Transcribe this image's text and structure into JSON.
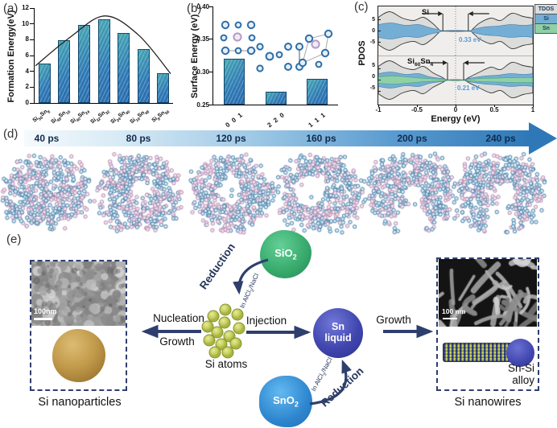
{
  "figure_labels": {
    "a": "(a)",
    "b": "(b)",
    "c": "(c)",
    "d": "(d)",
    "e": "(e)"
  },
  "chart_data": [
    {
      "panel": "a",
      "type": "bar",
      "title": "",
      "ylabel": "Formation Energy(eV)",
      "ylim": [
        0,
        12
      ],
      "yticks": [
        "0",
        "2",
        "4",
        "6",
        "8",
        "10",
        "12"
      ],
      "categories": [
        "Si56Sn8",
        "Si48Sn16",
        "Si40Sn24",
        "Si32Sn32",
        "Si24Sn40",
        "Si16Sn48",
        "Si8Sn56"
      ],
      "values": [
        5.0,
        7.9,
        9.9,
        10.6,
        8.9,
        6.8,
        3.8
      ],
      "envelope_curve": [
        4.7,
        8.3,
        11.0,
        8.6,
        3.7
      ],
      "bar_color": "#2f79b5"
    },
    {
      "panel": "b",
      "type": "bar",
      "title": "",
      "ylabel": "Surface Energy (eV)",
      "ylim": [
        0.25,
        0.4
      ],
      "yticks": [
        "0.25",
        "0.30",
        "0.35",
        "0.40"
      ],
      "categories": [
        "0 0 1",
        "2 2 0",
        "1 1 1"
      ],
      "values": [
        0.32,
        0.27,
        0.29
      ],
      "bar_color": "#2f79b5"
    },
    {
      "panel": "c",
      "type": "area",
      "title": "",
      "xlabel": "Energy (eV)",
      "ylabel": "PDOS",
      "xlim": [
        -1,
        1
      ],
      "xticks": [
        "-1",
        "-0.5",
        "0",
        "0.5",
        "1"
      ],
      "yticks": [
        "5",
        "0",
        "-5"
      ],
      "legend": [
        {
          "label": "TDOS",
          "color": "#dcdcda"
        },
        {
          "label": "Si",
          "color": "#74aed4"
        },
        {
          "label": "Sn",
          "color": "#8fd0a5"
        }
      ],
      "subplots": [
        {
          "label": "Si",
          "gap_label": "0.33 eV",
          "band_gap_ev": 0.33,
          "series": [
            "TDOS",
            "Si"
          ]
        },
        {
          "label": "Si60Sn4",
          "gap_label": "0.21 eV",
          "band_gap_ev": 0.21,
          "series": [
            "TDOS",
            "Si",
            "Sn"
          ]
        }
      ]
    }
  ],
  "panel_d": {
    "time_labels": [
      "40 ps",
      "80 ps",
      "120 ps",
      "160 ps",
      "200 ps",
      "240 ps"
    ],
    "atom_colors": {
      "si": "#4180ab",
      "sn": "#b58bb1"
    }
  },
  "panel_e": {
    "left_caption": "Si nanoparticles",
    "left_scalebar": "100nm",
    "nucleation_label": "Nucleation",
    "growth_left_label": "Growth",
    "si_atoms_label": "Si atoms",
    "injection_label": "Injection",
    "sio2_label": "SiO2",
    "sno2_label": "SnO2",
    "reduction_top_label": "Reduction",
    "salt_top_label": "In AlCl3/NaCl",
    "reduction_bottom_label": "Reduction",
    "salt_bottom_label": "In AlCl3/NaCl",
    "sn_liquid_label": "Sn liquid",
    "growth_right_label": "Growth",
    "right_scalebar": "100 nm",
    "alloy_label": "Sn-Si alloy",
    "right_caption": "Si nanowires",
    "arrow_color": "#2e3f6e"
  }
}
